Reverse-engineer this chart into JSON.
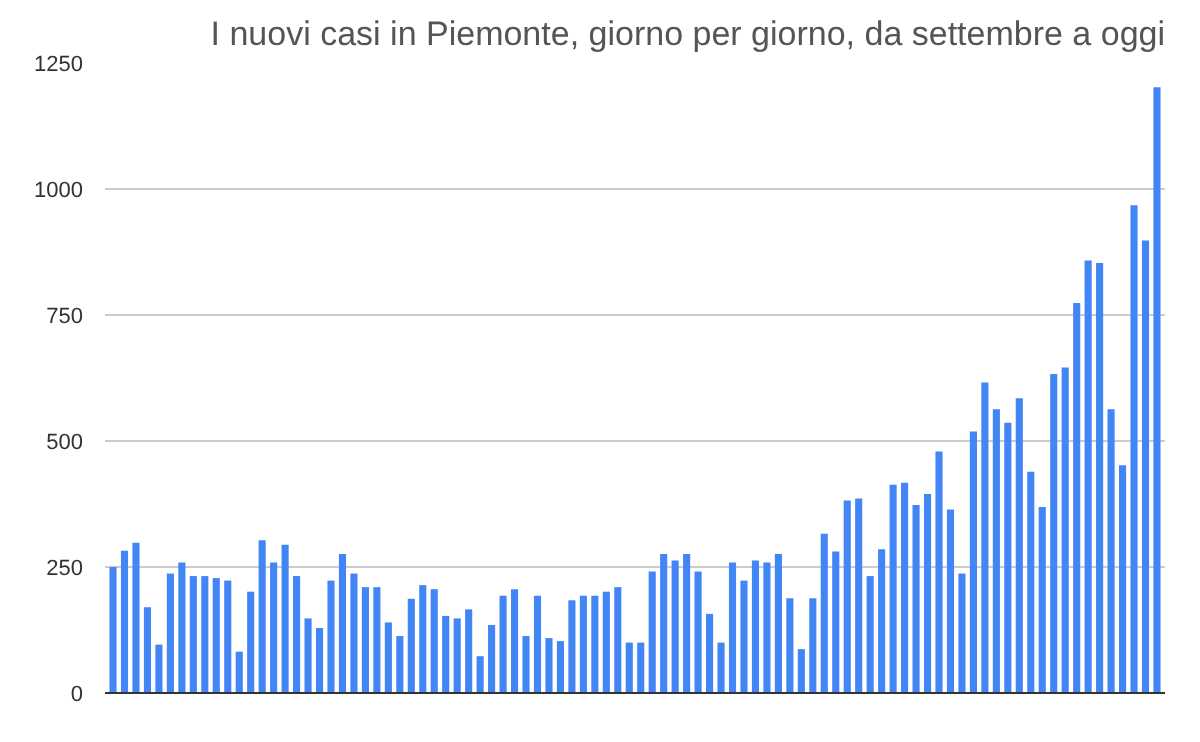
{
  "chart_data": {
    "type": "bar",
    "title": "I nuovi casi in Piemonte, giorno per giorno, da settembre a oggi",
    "categories": [
      null,
      null,
      null,
      null,
      null,
      null,
      null,
      null,
      null,
      null,
      null,
      null,
      null,
      null,
      null,
      null,
      null,
      null,
      null,
      null,
      null,
      null,
      null,
      null,
      null,
      null,
      null,
      null,
      null,
      null,
      null,
      null,
      null,
      null,
      null,
      null,
      null,
      null,
      null,
      null,
      null,
      null,
      null,
      null,
      null,
      null,
      null,
      null,
      null,
      null,
      null,
      null,
      null,
      null,
      null,
      null,
      null,
      null,
      null,
      null,
      null,
      null,
      null,
      null,
      null,
      null,
      null,
      null,
      null,
      null,
      null,
      null,
      null,
      null,
      null,
      null,
      null,
      null,
      null,
      null,
      null,
      null,
      null,
      null,
      null,
      null,
      null,
      null,
      null,
      null,
      null,
      null
    ],
    "values": [
      250,
      282,
      298,
      170,
      96,
      237,
      259,
      232,
      232,
      228,
      223,
      82,
      201,
      303,
      259,
      294,
      232,
      148,
      129,
      223,
      276,
      237,
      210,
      210,
      140,
      113,
      187,
      214,
      206,
      153,
      148,
      166,
      73,
      135,
      193,
      206,
      113,
      193,
      109,
      103,
      184,
      193,
      193,
      201,
      210,
      100,
      100,
      241,
      276,
      263,
      276,
      241,
      157,
      100,
      259,
      223,
      263,
      259,
      276,
      188,
      87,
      188,
      316,
      281,
      382,
      386,
      232,
      285,
      413,
      417,
      373,
      395,
      479,
      364,
      237,
      519,
      616,
      563,
      536,
      585,
      439,
      369,
      633,
      646,
      774,
      858,
      853,
      563,
      452,
      968,
      898,
      1202
    ],
    "color": "#4285f4",
    "ylim": [
      0,
      1250
    ],
    "yticks": [
      0,
      250,
      500,
      750,
      1000,
      1250
    ],
    "grid": "y",
    "tick_labels": "y"
  }
}
